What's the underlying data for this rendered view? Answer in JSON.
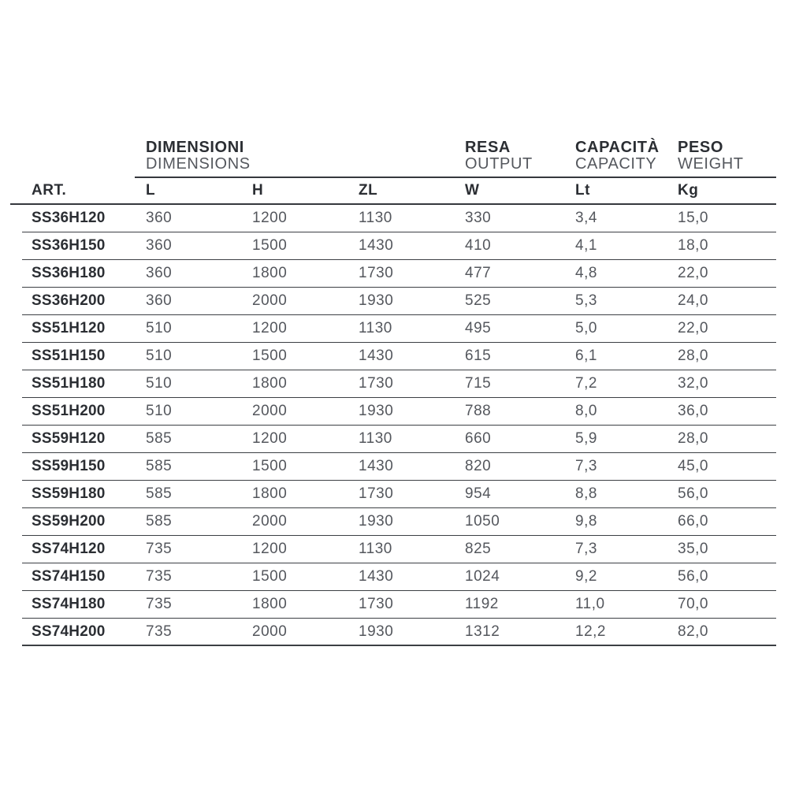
{
  "colors": {
    "text_dark": "#2b2e33",
    "text_light": "#54575d",
    "rule": "#35383d",
    "background": "#ffffff"
  },
  "table": {
    "groups": [
      {
        "primary": "DIMENSIONI",
        "secondary": "DIMENSIONS"
      },
      {
        "primary": "RESA",
        "secondary": "OUTPUT"
      },
      {
        "primary": "CAPACITÀ",
        "secondary": "CAPACITY"
      },
      {
        "primary": "PESO",
        "secondary": "WEIGHT"
      }
    ],
    "columns": [
      "ART.",
      "L",
      "H",
      "ZL",
      "W",
      "Lt",
      "Kg"
    ],
    "rows": [
      [
        "SS36H120",
        "360",
        "1200",
        "1130",
        "330",
        "3,4",
        "15,0"
      ],
      [
        "SS36H150",
        "360",
        "1500",
        "1430",
        "410",
        "4,1",
        "18,0"
      ],
      [
        "SS36H180",
        "360",
        "1800",
        "1730",
        "477",
        "4,8",
        "22,0"
      ],
      [
        "SS36H200",
        "360",
        "2000",
        "1930",
        "525",
        "5,3",
        "24,0"
      ],
      [
        "SS51H120",
        "510",
        "1200",
        "1130",
        "495",
        "5,0",
        "22,0"
      ],
      [
        "SS51H150",
        "510",
        "1500",
        "1430",
        "615",
        "6,1",
        "28,0"
      ],
      [
        "SS51H180",
        "510",
        "1800",
        "1730",
        "715",
        "7,2",
        "32,0"
      ],
      [
        "SS51H200",
        "510",
        "2000",
        "1930",
        "788",
        "8,0",
        "36,0"
      ],
      [
        "SS59H120",
        "585",
        "1200",
        "1130",
        "660",
        "5,9",
        "28,0"
      ],
      [
        "SS59H150",
        "585",
        "1500",
        "1430",
        "820",
        "7,3",
        "45,0"
      ],
      [
        "SS59H180",
        "585",
        "1800",
        "1730",
        "954",
        "8,8",
        "56,0"
      ],
      [
        "SS59H200",
        "585",
        "2000",
        "1930",
        "1050",
        "9,8",
        "66,0"
      ],
      [
        "SS74H120",
        "735",
        "1200",
        "1130",
        "825",
        "7,3",
        "35,0"
      ],
      [
        "SS74H150",
        "735",
        "1500",
        "1430",
        "1024",
        "9,2",
        "56,0"
      ],
      [
        "SS74H180",
        "735",
        "1800",
        "1730",
        "1192",
        "11,0",
        "70,0"
      ],
      [
        "SS74H200",
        "735",
        "2000",
        "1930",
        "1312",
        "12,2",
        "82,0"
      ]
    ]
  }
}
